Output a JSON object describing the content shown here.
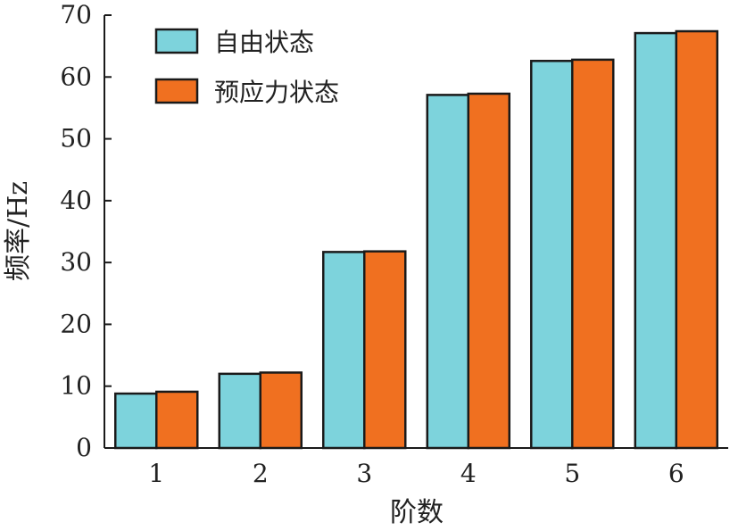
{
  "colors": {
    "series_0": "#7dd3dc",
    "series_1": "#f07020",
    "bar_outline": "#1a1a1a",
    "axis": "#1a1a1a"
  },
  "chart_data": {
    "type": "bar",
    "title": "",
    "xlabel": "阶数",
    "ylabel": "频率/Hz",
    "categories": [
      "1",
      "2",
      "3",
      "4",
      "5",
      "6"
    ],
    "series": [
      {
        "name": "自由状态",
        "values": [
          8.8,
          12.0,
          31.7,
          57.1,
          62.6,
          67.1
        ]
      },
      {
        "name": "预应力状态",
        "values": [
          9.1,
          12.2,
          31.8,
          57.3,
          62.8,
          67.4
        ]
      }
    ],
    "ylim": [
      0,
      70
    ],
    "yticks": [
      "0",
      "10",
      "20",
      "30",
      "40",
      "50",
      "60",
      "70"
    ],
    "grid": false,
    "legend_position": "top-left"
  }
}
